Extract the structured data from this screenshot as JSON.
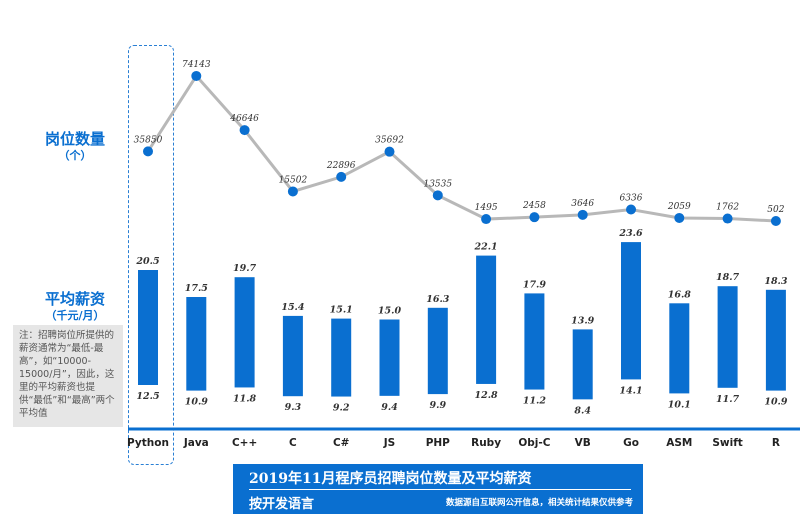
{
  "chart_data": {
    "type": "bar",
    "title": "2019年11月程序员招聘岗位数量及平均薪资",
    "subtitle": "按开发语言",
    "source": "数据源自互联网公开信息，相关统计结果仅供参考",
    "categories": [
      "Python",
      "Java",
      "C++",
      "C",
      "C#",
      "JS",
      "PHP",
      "Ruby",
      "Obj-C",
      "VB",
      "Go",
      "ASM",
      "Swift",
      "R"
    ],
    "series": [
      {
        "name": "岗位数量",
        "type": "line",
        "values": [
          35850,
          74143,
          46646,
          15502,
          22896,
          35692,
          13535,
          1495,
          2458,
          3646,
          6336,
          2059,
          1762,
          502
        ]
      },
      {
        "name": "平均薪资-最高",
        "values": [
          20.5,
          17.5,
          19.7,
          15.4,
          15.1,
          15.0,
          16.3,
          22.1,
          17.9,
          13.9,
          23.6,
          16.8,
          18.7,
          18.3
        ]
      },
      {
        "name": "平均薪资-最低",
        "values": [
          12.5,
          10.9,
          11.8,
          9.3,
          9.2,
          9.4,
          9.9,
          12.8,
          11.2,
          8.4,
          14.1,
          10.1,
          11.7,
          10.9
        ]
      }
    ],
    "ylabel_count": "岗位数量",
    "ylabel_count_unit": "（个）",
    "ylabel_salary": "平均薪资",
    "ylabel_salary_unit": "（千元/月）",
    "note": "注：招聘岗位所提供的薪资通常为“最低-最高”，如“10000-15000/月”，因此，这里的平均薪资也提供“最低”和“最高”两个平均值",
    "highlight": "Python",
    "colors": {
      "bar": "#0a6fd0",
      "line": "#b8b8b8",
      "point": "#0a6fd0"
    }
  }
}
